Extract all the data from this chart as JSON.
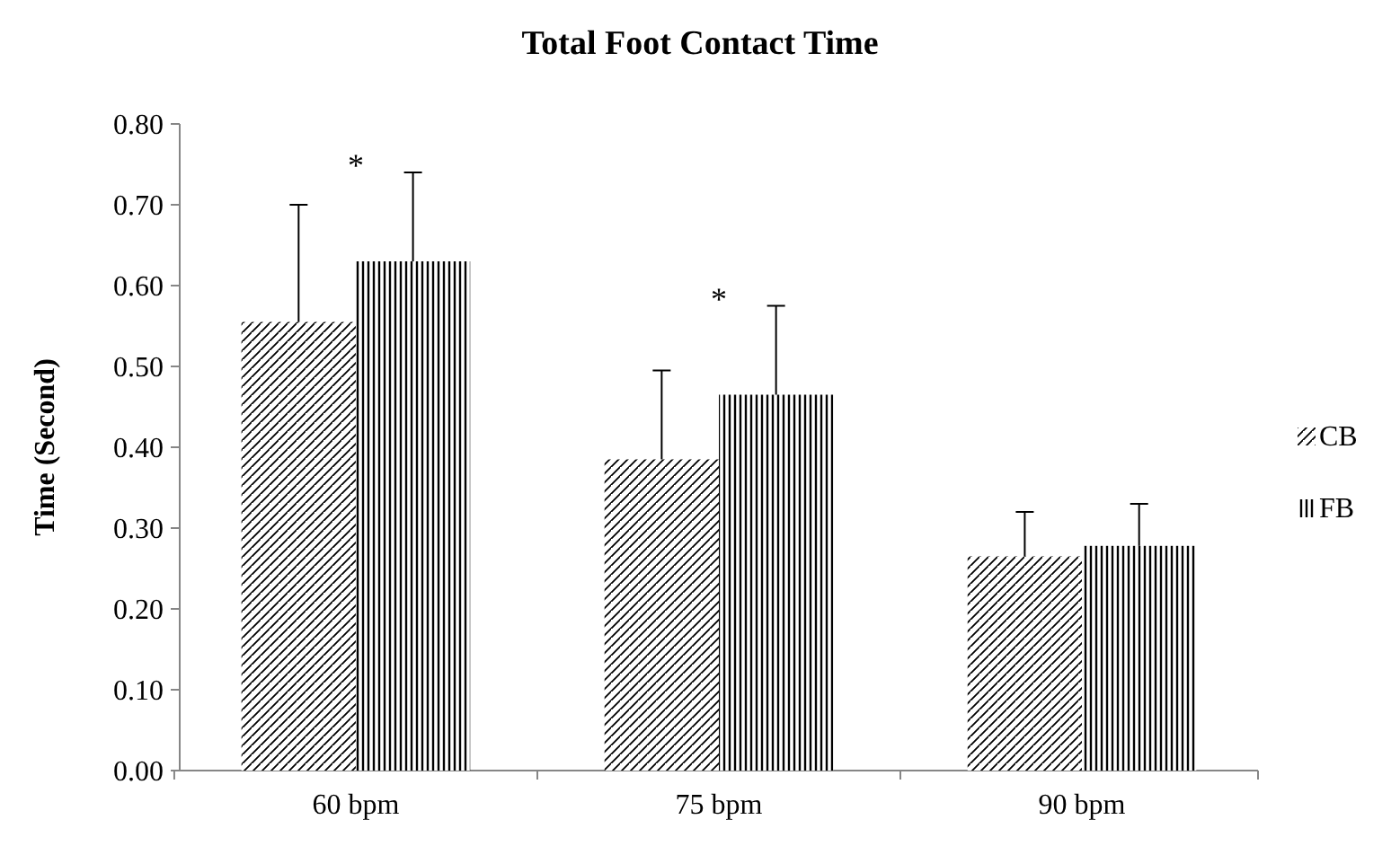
{
  "chart_data": {
    "type": "bar",
    "title": "Total Foot Contact Time",
    "ylabel": "Time (Second)",
    "categories": [
      "60 bpm",
      "75 bpm",
      "90 bpm"
    ],
    "series": [
      {
        "name": "CB",
        "color": "#000000",
        "values": [
          0.555,
          0.385,
          0.265
        ],
        "errors": [
          [
            0.555,
            0.7
          ],
          [
            0.385,
            0.495
          ],
          [
            0.265,
            0.32
          ]
        ]
      },
      {
        "name": "FB",
        "color": "#000000",
        "values": [
          0.63,
          0.465,
          0.278
        ],
        "errors": [
          [
            0.63,
            0.74
          ],
          [
            0.465,
            0.575
          ],
          [
            0.278,
            0.33
          ]
        ]
      }
    ],
    "ylim": [
      0,
      0.8
    ],
    "yticks": [
      {
        "value": 0,
        "label": "0.00"
      },
      {
        "value": 0.1,
        "label": "0.10"
      },
      {
        "value": 0.2,
        "label": "0.20"
      },
      {
        "value": 0.3,
        "label": "0.30"
      },
      {
        "value": 0.4,
        "label": "0.40"
      },
      {
        "value": 0.5,
        "label": "0.50"
      },
      {
        "value": 0.6,
        "label": "0.60"
      },
      {
        "value": 0.7,
        "label": "0.70"
      },
      {
        "value": 0.8,
        "label": "0.80"
      }
    ],
    "annotations": [
      "*",
      "*"
    ],
    "legend": "right",
    "grid": false
  }
}
